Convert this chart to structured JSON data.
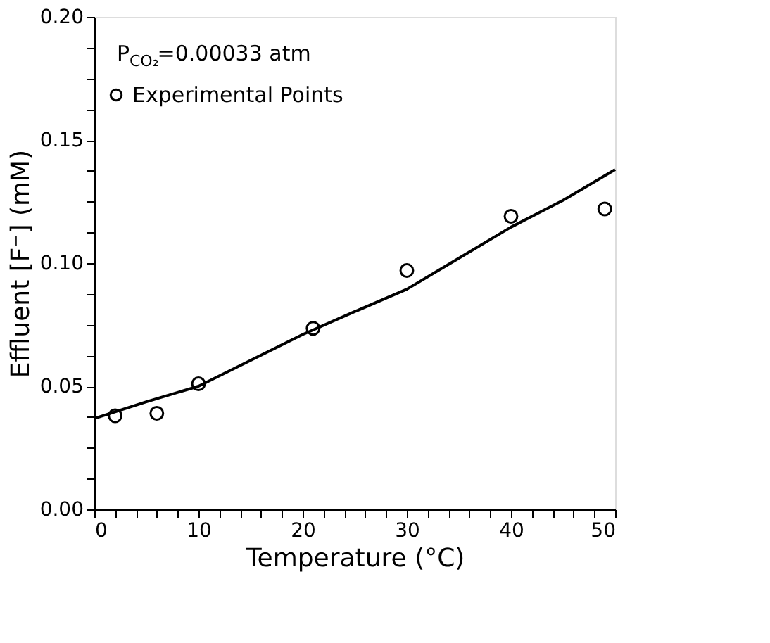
{
  "chart_data": {
    "type": "scatter",
    "xlabel": "Temperature (°C)",
    "ylabel": "Effluent [F⁻] (mM)",
    "annotations": [
      "P$_{CO₂}$=0.00033 atm"
    ],
    "xlim": [
      0,
      50
    ],
    "ylim": [
      0,
      0.2
    ],
    "xticks": [
      0,
      {
        "value": 2,
        "label": null
      },
      {
        "value": 4,
        "label": null
      },
      {
        "value": 6,
        "label": null
      },
      {
        "value": 8,
        "label": null
      },
      10,
      {
        "value": 12,
        "label": null
      },
      {
        "value": 14,
        "label": null
      },
      {
        "value": 16,
        "label": null
      },
      {
        "value": 18,
        "label": null
      },
      20,
      {
        "value": 22,
        "label": null
      },
      {
        "value": 24,
        "label": null
      },
      {
        "value": 26,
        "label": null
      },
      {
        "value": 28,
        "label": null
      },
      30,
      {
        "value": 32,
        "label": null
      },
      {
        "value": 34,
        "label": null
      },
      {
        "value": 36,
        "label": null
      },
      {
        "value": 38,
        "label": null
      },
      40,
      {
        "value": 42,
        "label": null
      },
      {
        "value": 44,
        "label": null
      },
      {
        "value": 46,
        "label": null
      },
      {
        "value": 48,
        "label": null
      },
      50
    ],
    "yticks": [
      {
        "value": 0,
        "label": "0.00"
      },
      {
        "value": 0.0125,
        "label": null
      },
      {
        "value": 0.025,
        "label": null
      },
      {
        "value": 0.0375,
        "label": null
      },
      0.05,
      {
        "value": 0.0625,
        "label": null
      },
      {
        "value": 0.075,
        "label": null
      },
      {
        "value": 0.0875,
        "label": null
      },
      {
        "value": 0.1,
        "label": "0.10"
      },
      {
        "value": 0.1125,
        "label": null
      },
      {
        "value": 0.125,
        "label": null
      },
      {
        "value": 0.1375,
        "label": null
      },
      0.15,
      {
        "value": 0.1625,
        "label": null
      },
      {
        "value": 0.175,
        "label": null
      },
      {
        "value": 0.1875,
        "label": null
      },
      {
        "value": 0.2,
        "label": "0.20"
      }
    ],
    "grid": false,
    "legend": "top left",
    "marker": "circle",
    "series": [
      {
        "name": "Experimental Points",
        "color": "#000000",
        "x": [
          2,
          6,
          10,
          21,
          30,
          40,
          49
        ],
        "values": [
          0.038,
          0.039,
          0.051,
          0.0735,
          0.097,
          0.119,
          0.122
        ]
      },
      {
        "type": "line",
        "color": "#000000",
        "line_style": "solid",
        "marker": "none",
        "x": [
          0,
          5,
          10,
          15,
          20,
          25,
          30,
          35,
          40,
          45,
          50
        ],
        "values": [
          0.0369,
          0.0437,
          0.05,
          0.0605,
          0.071,
          0.0803,
          0.0894,
          0.102,
          0.1146,
          0.1255,
          0.138
        ]
      }
    ]
  }
}
